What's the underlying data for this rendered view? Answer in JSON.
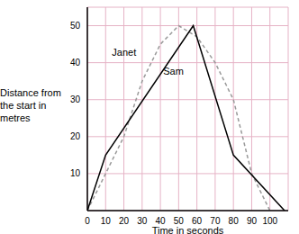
{
  "chart_data": {
    "type": "line",
    "x_label": "Time in seconds",
    "y_label": "Distance from the start in metres",
    "xlim": [
      0,
      110
    ],
    "xticks": [
      0,
      10,
      20,
      30,
      40,
      50,
      60,
      70,
      80,
      90,
      100
    ],
    "ylim": [
      0,
      55
    ],
    "yticks": [
      10,
      20,
      30,
      40,
      50
    ],
    "grid": true,
    "series": [
      {
        "name": "Janet",
        "color": "#999999",
        "line_style": "dashed",
        "x": [
          0,
          10,
          20,
          30,
          40,
          50,
          60,
          70,
          80,
          90,
          100
        ],
        "values": [
          0,
          10,
          20,
          35,
          45,
          50,
          47,
          40,
          30,
          10,
          0
        ]
      },
      {
        "name": "Sam",
        "color": "#000000",
        "line_style": "solid",
        "x": [
          0,
          10,
          58,
          80,
          108
        ],
        "values": [
          0,
          15,
          50,
          15,
          0
        ]
      }
    ]
  }
}
